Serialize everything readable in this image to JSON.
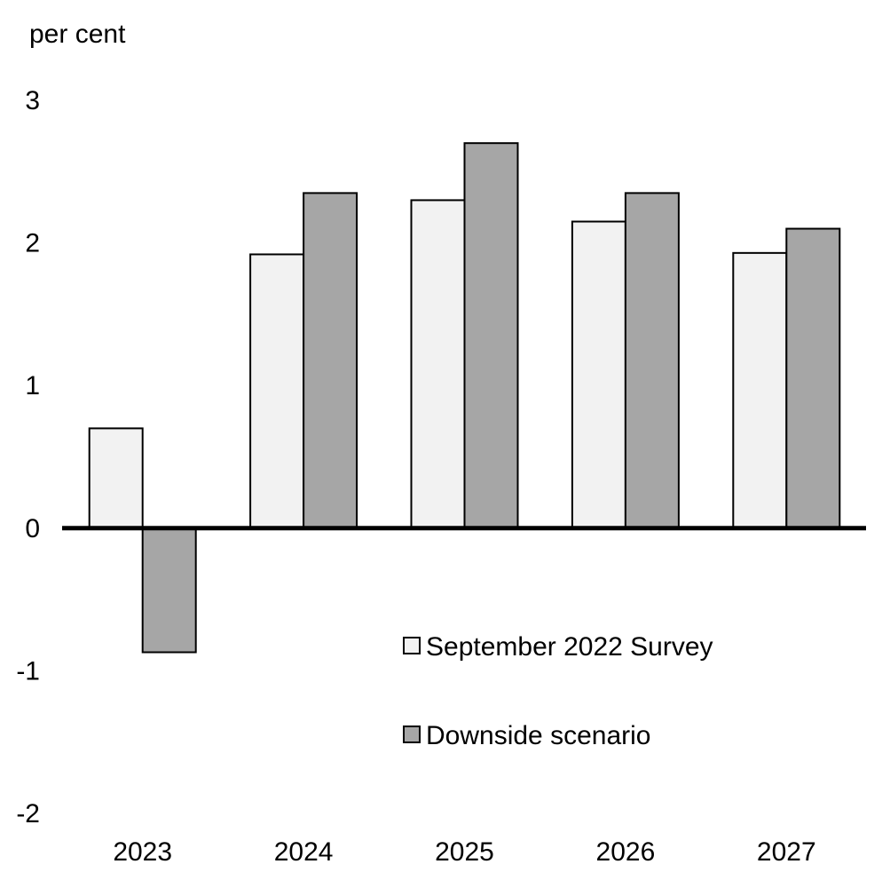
{
  "chart_data": {
    "type": "bar",
    "ylabel": "per cent",
    "categories": [
      "2023",
      "2024",
      "2025",
      "2026",
      "2027"
    ],
    "series": [
      {
        "name": "September 2022 Survey",
        "values": [
          0.7,
          1.92,
          2.3,
          2.15,
          1.93
        ],
        "color": "#f2f2f2"
      },
      {
        "name": "Downside scenario",
        "values": [
          -0.87,
          2.35,
          2.7,
          2.35,
          2.1
        ],
        "color": "#a6a6a6"
      }
    ],
    "ylim": [
      -2,
      3
    ],
    "yticks": [
      -2,
      -1,
      0,
      1,
      2,
      3
    ],
    "grid": false,
    "legend_position": "bottom-right"
  }
}
